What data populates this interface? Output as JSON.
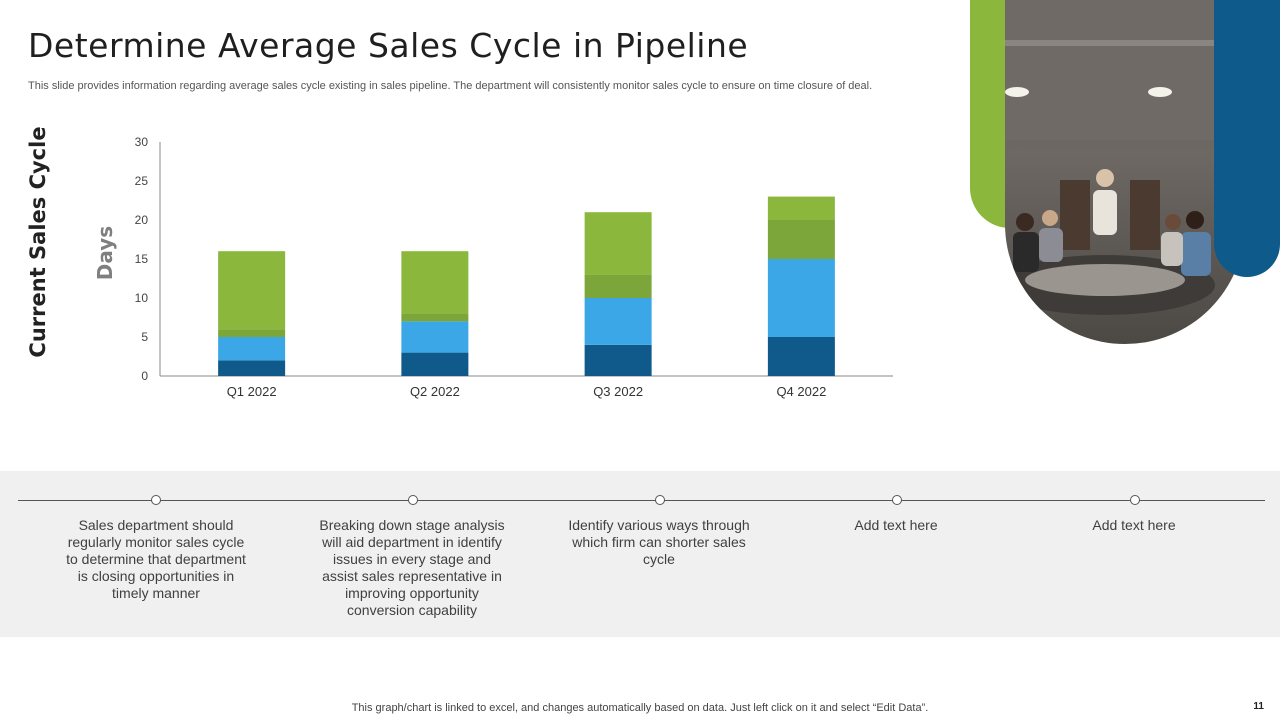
{
  "page": {
    "title": "Determine Average Sales Cycle in Pipeline",
    "subtitle": "This slide provides information regarding average sales cycle existing in sales pipeline. The department will consistently monitor sales cycle to ensure on time closure of deal.",
    "side_label": "Current Sales Cycle",
    "footer_note": "This graph/chart is linked to excel,  and changes automatically based on data. Just left click on it and select “Edit Data”.",
    "page_number": "11"
  },
  "chart_data": {
    "type": "bar",
    "stacked": true,
    "categories": [
      "Q1 2022",
      "Q2 2022",
      "Q3 2022",
      "Q4 2022"
    ],
    "series": [
      {
        "values": [
          2,
          3,
          4,
          5
        ],
        "color": "#0f5a8a"
      },
      {
        "values": [
          3,
          4,
          6,
          10
        ],
        "color": "#3ba7e6"
      },
      {
        "values": [
          1,
          1,
          3,
          5
        ],
        "color": "#7ca63a"
      },
      {
        "values": [
          10,
          8,
          8,
          3
        ],
        "color": "#8ab73c"
      }
    ],
    "ylabel": "Days",
    "ylim": [
      0,
      30
    ],
    "yticks": [
      0,
      5,
      10,
      15,
      20,
      25,
      30
    ],
    "grid": false,
    "legend": "none"
  },
  "timeline": {
    "items": [
      {
        "text": "Sales department should regularly monitor sales cycle to determine that department is closing opportunities in timely manner"
      },
      {
        "text": "Breaking down stage analysis will aid department in identify issues in every stage and assist sales representative in improving opportunity conversion capability"
      },
      {
        "text": "Identify various ways through which firm can shorter sales cycle"
      },
      {
        "text": "Add text here"
      },
      {
        "text": "Add text here"
      }
    ]
  },
  "image": {
    "icon": "meeting-photo",
    "description_visible": false
  },
  "colors": {
    "green": "#8ab73c",
    "dark_green": "#7ca63a",
    "blue": "#3ba7e6",
    "navy": "#0f5a8a"
  }
}
